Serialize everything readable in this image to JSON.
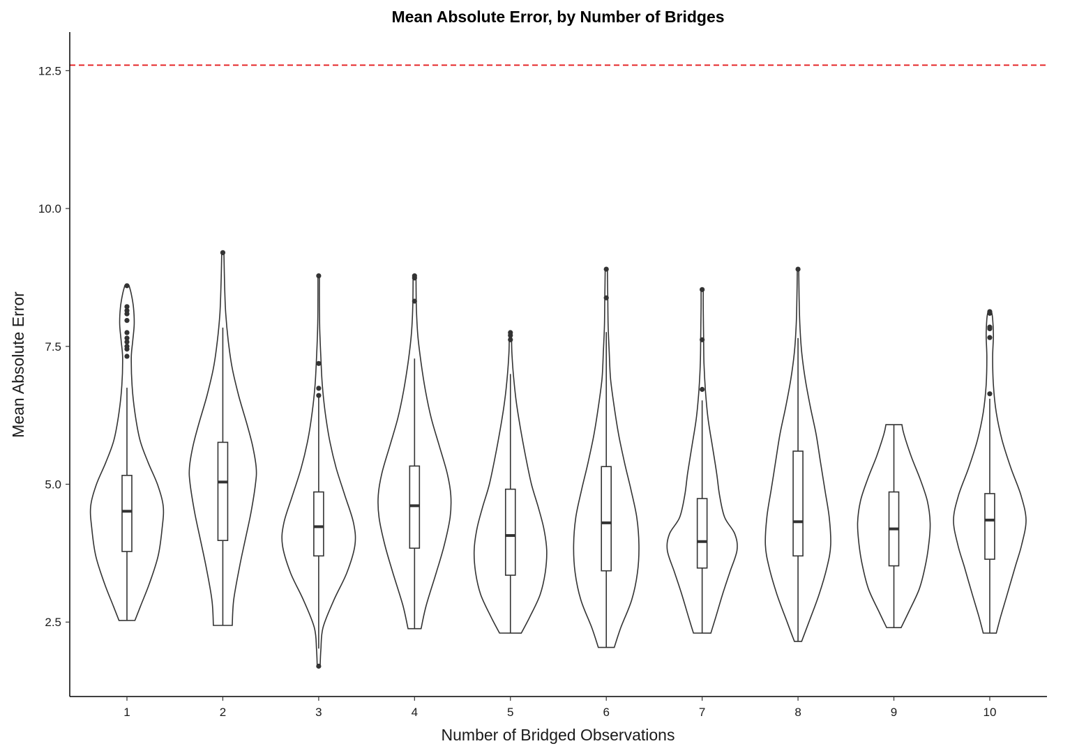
{
  "chart_data": {
    "type": "violin",
    "title": "Mean Absolute Error, by Number of Bridges",
    "xlabel": "Number of Bridged Observations",
    "ylabel": "Mean Absolute Error",
    "categories": [
      "1",
      "2",
      "3",
      "4",
      "5",
      "6",
      "7",
      "8",
      "9",
      "10"
    ],
    "yticks": [
      "2.5",
      "5.0",
      "7.5",
      "10.0",
      "12.5"
    ],
    "ylim": [
      1.15,
      13.2
    ],
    "reference_line": {
      "y": 12.6,
      "color": "#e41a1c",
      "style": "dashed"
    },
    "groups": [
      {
        "category": "1",
        "min": 2.53,
        "q1": 3.78,
        "median": 4.51,
        "q3": 5.16,
        "whisker_low": 2.53,
        "whisker_high": 6.75,
        "max": 8.6,
        "outliers": [
          8.6,
          8.22,
          8.15,
          8.09,
          7.97,
          7.75,
          7.65,
          7.58,
          7.5,
          7.45,
          7.32
        ],
        "density": [
          [
            2.53,
            0.22
          ],
          [
            2.8,
            0.38
          ],
          [
            3.2,
            0.62
          ],
          [
            3.7,
            0.86
          ],
          [
            4.2,
            0.97
          ],
          [
            4.6,
            1.0
          ],
          [
            5.0,
            0.84
          ],
          [
            5.4,
            0.58
          ],
          [
            5.8,
            0.36
          ],
          [
            6.3,
            0.22
          ],
          [
            6.8,
            0.14
          ],
          [
            7.3,
            0.12
          ],
          [
            7.6,
            0.16
          ],
          [
            7.9,
            0.2
          ],
          [
            8.2,
            0.18
          ],
          [
            8.45,
            0.12
          ],
          [
            8.6,
            0.06
          ]
        ]
      },
      {
        "category": "2",
        "min": 2.44,
        "q1": 3.98,
        "median": 5.04,
        "q3": 5.76,
        "whisker_low": 2.44,
        "whisker_high": 7.84,
        "max": 9.2,
        "outliers": [
          9.2
        ],
        "density": [
          [
            2.44,
            0.26
          ],
          [
            2.9,
            0.3
          ],
          [
            3.5,
            0.46
          ],
          [
            4.0,
            0.62
          ],
          [
            4.5,
            0.78
          ],
          [
            5.0,
            0.9
          ],
          [
            5.3,
            0.92
          ],
          [
            5.7,
            0.82
          ],
          [
            6.1,
            0.66
          ],
          [
            6.6,
            0.44
          ],
          [
            7.1,
            0.26
          ],
          [
            7.6,
            0.15
          ],
          [
            8.1,
            0.08
          ],
          [
            8.6,
            0.05
          ],
          [
            9.2,
            0.03
          ]
        ]
      },
      {
        "category": "3",
        "min": 1.7,
        "q1": 3.7,
        "median": 4.23,
        "q3": 4.86,
        "whisker_low": 2.02,
        "whisker_high": 6.6,
        "max": 8.78,
        "outliers": [
          8.78,
          7.19,
          6.74,
          6.61,
          1.7
        ],
        "density": [
          [
            1.7,
            0.04
          ],
          [
            2.0,
            0.06
          ],
          [
            2.4,
            0.12
          ],
          [
            2.9,
            0.42
          ],
          [
            3.4,
            0.78
          ],
          [
            3.9,
            1.0
          ],
          [
            4.3,
            0.96
          ],
          [
            4.8,
            0.72
          ],
          [
            5.3,
            0.48
          ],
          [
            5.8,
            0.3
          ],
          [
            6.3,
            0.18
          ],
          [
            6.8,
            0.1
          ],
          [
            7.3,
            0.06
          ],
          [
            7.8,
            0.03
          ],
          [
            8.3,
            0.02
          ],
          [
            8.78,
            0.02
          ]
        ]
      },
      {
        "category": "4",
        "min": 2.38,
        "q1": 3.84,
        "median": 4.61,
        "q3": 5.33,
        "whisker_low": 2.38,
        "whisker_high": 7.28,
        "max": 8.78,
        "outliers": [
          8.78,
          8.74,
          8.32
        ],
        "density": [
          [
            2.38,
            0.18
          ],
          [
            2.8,
            0.32
          ],
          [
            3.4,
            0.6
          ],
          [
            3.9,
            0.82
          ],
          [
            4.4,
            0.98
          ],
          [
            4.8,
            1.0
          ],
          [
            5.2,
            0.9
          ],
          [
            5.7,
            0.68
          ],
          [
            6.2,
            0.46
          ],
          [
            6.7,
            0.3
          ],
          [
            7.2,
            0.18
          ],
          [
            7.7,
            0.09
          ],
          [
            8.2,
            0.05
          ],
          [
            8.78,
            0.04
          ]
        ]
      },
      {
        "category": "5",
        "min": 2.3,
        "q1": 3.35,
        "median": 4.07,
        "q3": 4.91,
        "whisker_low": 2.3,
        "whisker_high": 7.0,
        "max": 7.75,
        "outliers": [
          7.75,
          7.7,
          7.62
        ],
        "density": [
          [
            2.3,
            0.3
          ],
          [
            2.6,
            0.54
          ],
          [
            3.0,
            0.82
          ],
          [
            3.4,
            0.96
          ],
          [
            3.8,
            1.0
          ],
          [
            4.2,
            0.92
          ],
          [
            4.6,
            0.76
          ],
          [
            5.0,
            0.58
          ],
          [
            5.5,
            0.42
          ],
          [
            6.0,
            0.28
          ],
          [
            6.5,
            0.16
          ],
          [
            7.0,
            0.08
          ],
          [
            7.4,
            0.04
          ],
          [
            7.75,
            0.03
          ]
        ]
      },
      {
        "category": "6",
        "min": 2.04,
        "q1": 3.43,
        "median": 4.3,
        "q3": 5.32,
        "whisker_low": 2.04,
        "whisker_high": 7.76,
        "max": 8.9,
        "outliers": [
          8.9,
          8.38
        ],
        "density": [
          [
            2.04,
            0.22
          ],
          [
            2.4,
            0.4
          ],
          [
            2.9,
            0.7
          ],
          [
            3.4,
            0.86
          ],
          [
            3.9,
            0.9
          ],
          [
            4.4,
            0.84
          ],
          [
            4.9,
            0.68
          ],
          [
            5.4,
            0.5
          ],
          [
            5.9,
            0.34
          ],
          [
            6.4,
            0.22
          ],
          [
            6.9,
            0.12
          ],
          [
            7.4,
            0.08
          ],
          [
            7.9,
            0.05
          ],
          [
            8.4,
            0.04
          ],
          [
            8.9,
            0.03
          ]
        ]
      },
      {
        "category": "7",
        "min": 2.3,
        "q1": 3.48,
        "median": 3.96,
        "q3": 4.74,
        "whisker_low": 2.3,
        "whisker_high": 6.52,
        "max": 8.53,
        "outliers": [
          8.53,
          7.62,
          6.72
        ],
        "density": [
          [
            2.3,
            0.24
          ],
          [
            2.6,
            0.38
          ],
          [
            3.0,
            0.56
          ],
          [
            3.4,
            0.76
          ],
          [
            3.8,
            0.96
          ],
          [
            4.1,
            0.9
          ],
          [
            4.4,
            0.62
          ],
          [
            4.8,
            0.48
          ],
          [
            5.2,
            0.4
          ],
          [
            5.7,
            0.28
          ],
          [
            6.2,
            0.16
          ],
          [
            6.7,
            0.09
          ],
          [
            7.2,
            0.05
          ],
          [
            7.7,
            0.04
          ],
          [
            8.2,
            0.03
          ],
          [
            8.53,
            0.03
          ]
        ]
      },
      {
        "category": "8",
        "min": 2.15,
        "q1": 3.7,
        "median": 4.32,
        "q3": 5.6,
        "whisker_low": 2.15,
        "whisker_high": 7.65,
        "max": 8.9,
        "outliers": [
          8.9
        ],
        "density": [
          [
            2.15,
            0.1
          ],
          [
            2.5,
            0.3
          ],
          [
            3.0,
            0.58
          ],
          [
            3.5,
            0.8
          ],
          [
            3.9,
            0.9
          ],
          [
            4.4,
            0.86
          ],
          [
            4.9,
            0.74
          ],
          [
            5.4,
            0.62
          ],
          [
            5.9,
            0.5
          ],
          [
            6.4,
            0.34
          ],
          [
            6.9,
            0.2
          ],
          [
            7.4,
            0.1
          ],
          [
            7.9,
            0.05
          ],
          [
            8.4,
            0.03
          ],
          [
            8.9,
            0.02
          ]
        ]
      },
      {
        "category": "9",
        "min": 2.4,
        "q1": 3.52,
        "median": 4.19,
        "q3": 4.86,
        "whisker_low": 2.4,
        "whisker_high": 6.08,
        "max": 6.08,
        "outliers": [],
        "density": [
          [
            2.4,
            0.2
          ],
          [
            2.7,
            0.42
          ],
          [
            3.1,
            0.7
          ],
          [
            3.5,
            0.86
          ],
          [
            3.9,
            0.96
          ],
          [
            4.3,
            1.0
          ],
          [
            4.7,
            0.92
          ],
          [
            5.1,
            0.72
          ],
          [
            5.5,
            0.48
          ],
          [
            5.9,
            0.28
          ],
          [
            6.08,
            0.22
          ]
        ]
      },
      {
        "category": "10",
        "min": 2.3,
        "q1": 3.64,
        "median": 4.35,
        "q3": 4.83,
        "whisker_low": 2.3,
        "whisker_high": 6.55,
        "max": 8.13,
        "outliers": [
          8.13,
          8.1,
          7.85,
          7.82,
          7.66,
          6.64
        ],
        "density": [
          [
            2.3,
            0.18
          ],
          [
            2.6,
            0.3
          ],
          [
            3.0,
            0.48
          ],
          [
            3.5,
            0.7
          ],
          [
            3.9,
            0.88
          ],
          [
            4.35,
            1.0
          ],
          [
            4.8,
            0.86
          ],
          [
            5.3,
            0.58
          ],
          [
            5.8,
            0.34
          ],
          [
            6.3,
            0.18
          ],
          [
            6.8,
            0.1
          ],
          [
            7.3,
            0.08
          ],
          [
            7.7,
            0.1
          ],
          [
            8.0,
            0.08
          ],
          [
            8.13,
            0.05
          ]
        ]
      }
    ]
  }
}
